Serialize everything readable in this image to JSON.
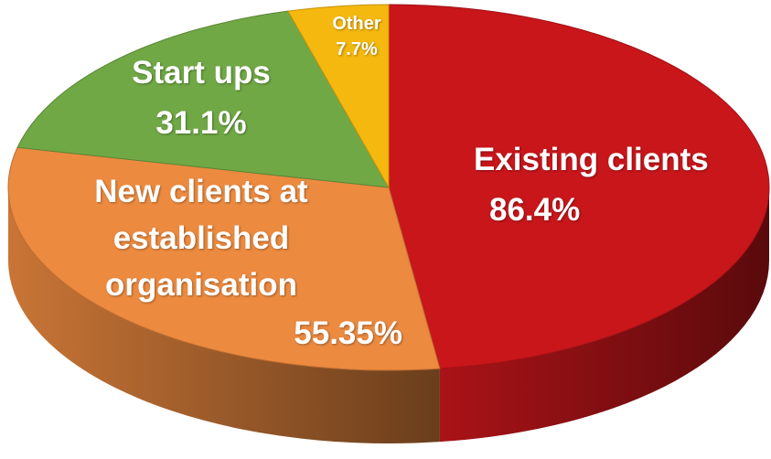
{
  "chart_data": {
    "type": "pie",
    "categories": [
      "Existing clients",
      "New clients at established organisation",
      "Start ups",
      "Other"
    ],
    "values": [
      86.4,
      55.35,
      31.1,
      7.7
    ],
    "value_labels": [
      "86.4%",
      "55.35%",
      "31.1%",
      "7.7%"
    ],
    "colors": [
      "#c8161b",
      "#ec8a3f",
      "#70a845",
      "#f5b80f"
    ]
  }
}
